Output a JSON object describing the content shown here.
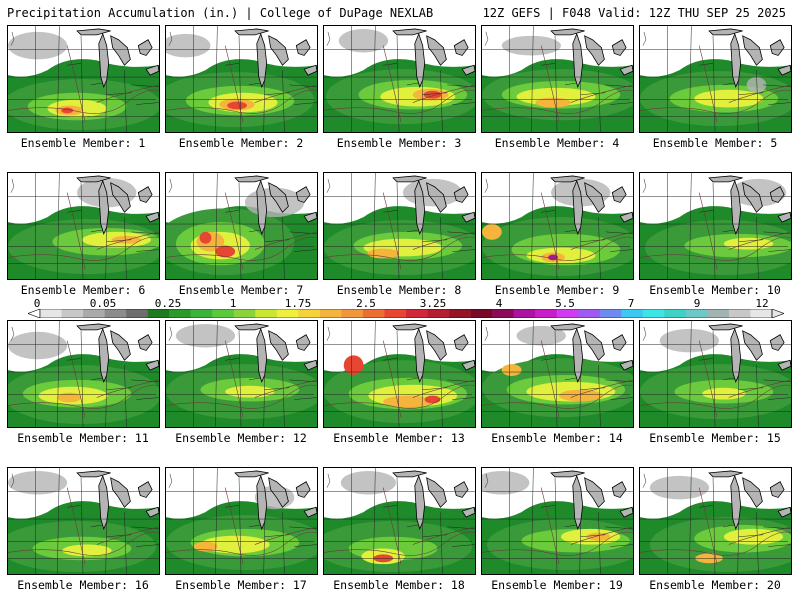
{
  "header": {
    "left_title": "Precipitation Accumulation (in.) | College of DuPage NEXLAB",
    "right_title": "12Z GEFS | F048 Valid: 12Z THU SEP 25 2025"
  },
  "colorbar": {
    "tick_labels": [
      "0",
      "0.05",
      "0.25",
      "1",
      "1.75",
      "2.5",
      "3.25",
      "4",
      "5.5",
      "7",
      "9",
      "12"
    ],
    "colors": [
      "#e6e6e6",
      "#c8c8c8",
      "#aaaaaa",
      "#8c8c8c",
      "#6e6e6e",
      "#1e7a1e",
      "#2a9a2a",
      "#3cb43c",
      "#5cc83c",
      "#8cd23c",
      "#c8e632",
      "#f0f03c",
      "#f5d23c",
      "#f5b43c",
      "#f0963c",
      "#eb6e32",
      "#e64632",
      "#d2283c",
      "#b41e32",
      "#961428",
      "#780a28",
      "#8c0a5a",
      "#aa14a0",
      "#c81ec8",
      "#d23cf0",
      "#a05af0",
      "#6e8cf0",
      "#3cc8f0",
      "#3ce6e6",
      "#3cd2c8",
      "#6ec8c8",
      "#a0b4b4",
      "#c8c8c8",
      "#e6e6e6"
    ]
  },
  "members": [
    {
      "label": "Ensemble Member: 1"
    },
    {
      "label": "Ensemble Member: 2"
    },
    {
      "label": "Ensemble Member: 3"
    },
    {
      "label": "Ensemble Member: 4"
    },
    {
      "label": "Ensemble Member: 5"
    },
    {
      "label": "Ensemble Member: 6"
    },
    {
      "label": "Ensemble Member: 7"
    },
    {
      "label": "Ensemble Member: 8"
    },
    {
      "label": "Ensemble Member: 9"
    },
    {
      "label": "Ensemble Member: 10"
    },
    {
      "label": "Ensemble Member: 11"
    },
    {
      "label": "Ensemble Member: 12"
    },
    {
      "label": "Ensemble Member: 13"
    },
    {
      "label": "Ensemble Member: 14"
    },
    {
      "label": "Ensemble Member: 15"
    },
    {
      "label": "Ensemble Member: 16"
    },
    {
      "label": "Ensemble Member: 17"
    },
    {
      "label": "Ensemble Member: 18"
    },
    {
      "label": "Ensemble Member: 19"
    },
    {
      "label": "Ensemble Member: 20"
    }
  ]
}
